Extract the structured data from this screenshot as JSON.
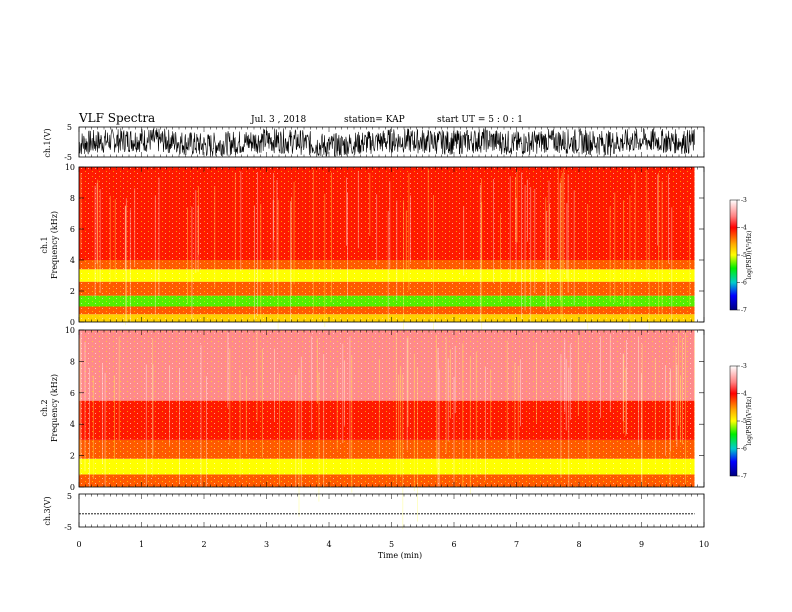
{
  "header": {
    "title": "VLF Spectra",
    "date": "Jul. 3 , 2018",
    "station": "station= KAP",
    "start": "start UT = 5 : 0 : 1"
  },
  "colors": {
    "strong": "#ff0000",
    "mid": "#ffff00",
    "low": "#00e600",
    "faint": "#ffe6e6"
  },
  "chart_data": [
    {
      "type": "line",
      "panel": "waveform-ch1",
      "ylabel": "ch.1(V)",
      "ylim": [
        -5,
        5
      ],
      "ytick_labels": [
        "5",
        "-5"
      ],
      "x": [
        0,
        0.5,
        1,
        1.5,
        2,
        2.5,
        3,
        3.5,
        4,
        4.5,
        5,
        5.5,
        6,
        6.5,
        7,
        7.5,
        8,
        8.5,
        9,
        9.5,
        9.85
      ],
      "y_min": [
        -4.8,
        -4.5,
        -4.6,
        -4.3,
        -4.9,
        -4.4,
        -4.7,
        -4.5,
        -4.8,
        -4.2,
        -4.6,
        -4.4,
        -4.7,
        -4.5,
        -4.6,
        -4.3,
        -4.8,
        -4.5,
        -4.6,
        -4.4,
        -4.7
      ],
      "y_max": [
        4.8,
        4.6,
        4.7,
        4.9,
        4.5,
        4.8,
        4.6,
        4.9,
        4.7,
        4.8,
        4.6,
        4.9,
        4.5,
        4.8,
        4.7,
        4.6,
        4.9,
        4.8,
        4.6,
        4.7,
        4.8
      ],
      "y_mean": [
        -0.5,
        0.4,
        0.8,
        0.2,
        -1.2,
        -0.3,
        0.6,
        0.1,
        -1.5,
        -0.4,
        0.5,
        0.3,
        -0.2,
        0.7,
        -0.6,
        0.4,
        0.1,
        -0.3,
        0.6,
        0.2,
        0.0
      ]
    },
    {
      "type": "heatmap",
      "panel": "spectrogram-ch1",
      "ylabel": "ch.1\nFrequency (kHz)",
      "ylim": [
        0,
        10
      ],
      "ytick_labels": [
        "0",
        "2",
        "4",
        "6",
        "8",
        "10"
      ],
      "colorbar": {
        "label": "log(PSD)(V²/Hz)",
        "range": [
          -7,
          -3
        ],
        "tick_labels": [
          "-3",
          "-4",
          "-5",
          "-6",
          "-7"
        ]
      },
      "bands_khz": [
        {
          "from": 0,
          "to": 0.5,
          "level": -4.6
        },
        {
          "from": 0.5,
          "to": 1.0,
          "level": -4.1
        },
        {
          "from": 1.0,
          "to": 1.7,
          "level": -5.3
        },
        {
          "from": 1.7,
          "to": 2.6,
          "level": -4.2
        },
        {
          "from": 2.6,
          "to": 3.4,
          "level": -4.9
        },
        {
          "from": 3.4,
          "to": 4.0,
          "level": -4.1
        },
        {
          "from": 4.0,
          "to": 5.0,
          "level": -3.95
        },
        {
          "from": 5.0,
          "to": 10.0,
          "level": -3.8
        }
      ]
    },
    {
      "type": "heatmap",
      "panel": "spectrogram-ch2",
      "ylabel": "ch.2\nFrequency (kHz)",
      "ylim": [
        0,
        10
      ],
      "ytick_labels": [
        "0",
        "2",
        "4",
        "6",
        "8",
        "10"
      ],
      "colorbar": {
        "label": "log(PSD)(V²/Hz)",
        "range": [
          -7,
          -3
        ],
        "tick_labels": [
          "-3",
          "-4",
          "-5",
          "-6",
          "-7"
        ]
      },
      "bands_khz": [
        {
          "from": 0,
          "to": 0.8,
          "level": -4.4
        },
        {
          "from": 0.8,
          "to": 1.8,
          "level": -5.0
        },
        {
          "from": 1.8,
          "to": 3.0,
          "level": -4.2
        },
        {
          "from": 3.0,
          "to": 5.5,
          "level": -3.8
        },
        {
          "from": 5.5,
          "to": 10.0,
          "level": -3.5
        }
      ]
    },
    {
      "type": "line",
      "panel": "waveform-ch3",
      "ylabel": "ch.3(V)",
      "ylim": [
        -5,
        5
      ],
      "ytick_labels": [
        "5",
        "-5"
      ],
      "x": [
        0,
        9.85
      ],
      "y": [
        -1.0,
        -1.0
      ],
      "xlabel": "Time (min)",
      "xlim": [
        0,
        10
      ],
      "xtick_labels": [
        "0",
        "1",
        "2",
        "3",
        "4",
        "5",
        "6",
        "7",
        "8",
        "9",
        "10"
      ]
    }
  ]
}
